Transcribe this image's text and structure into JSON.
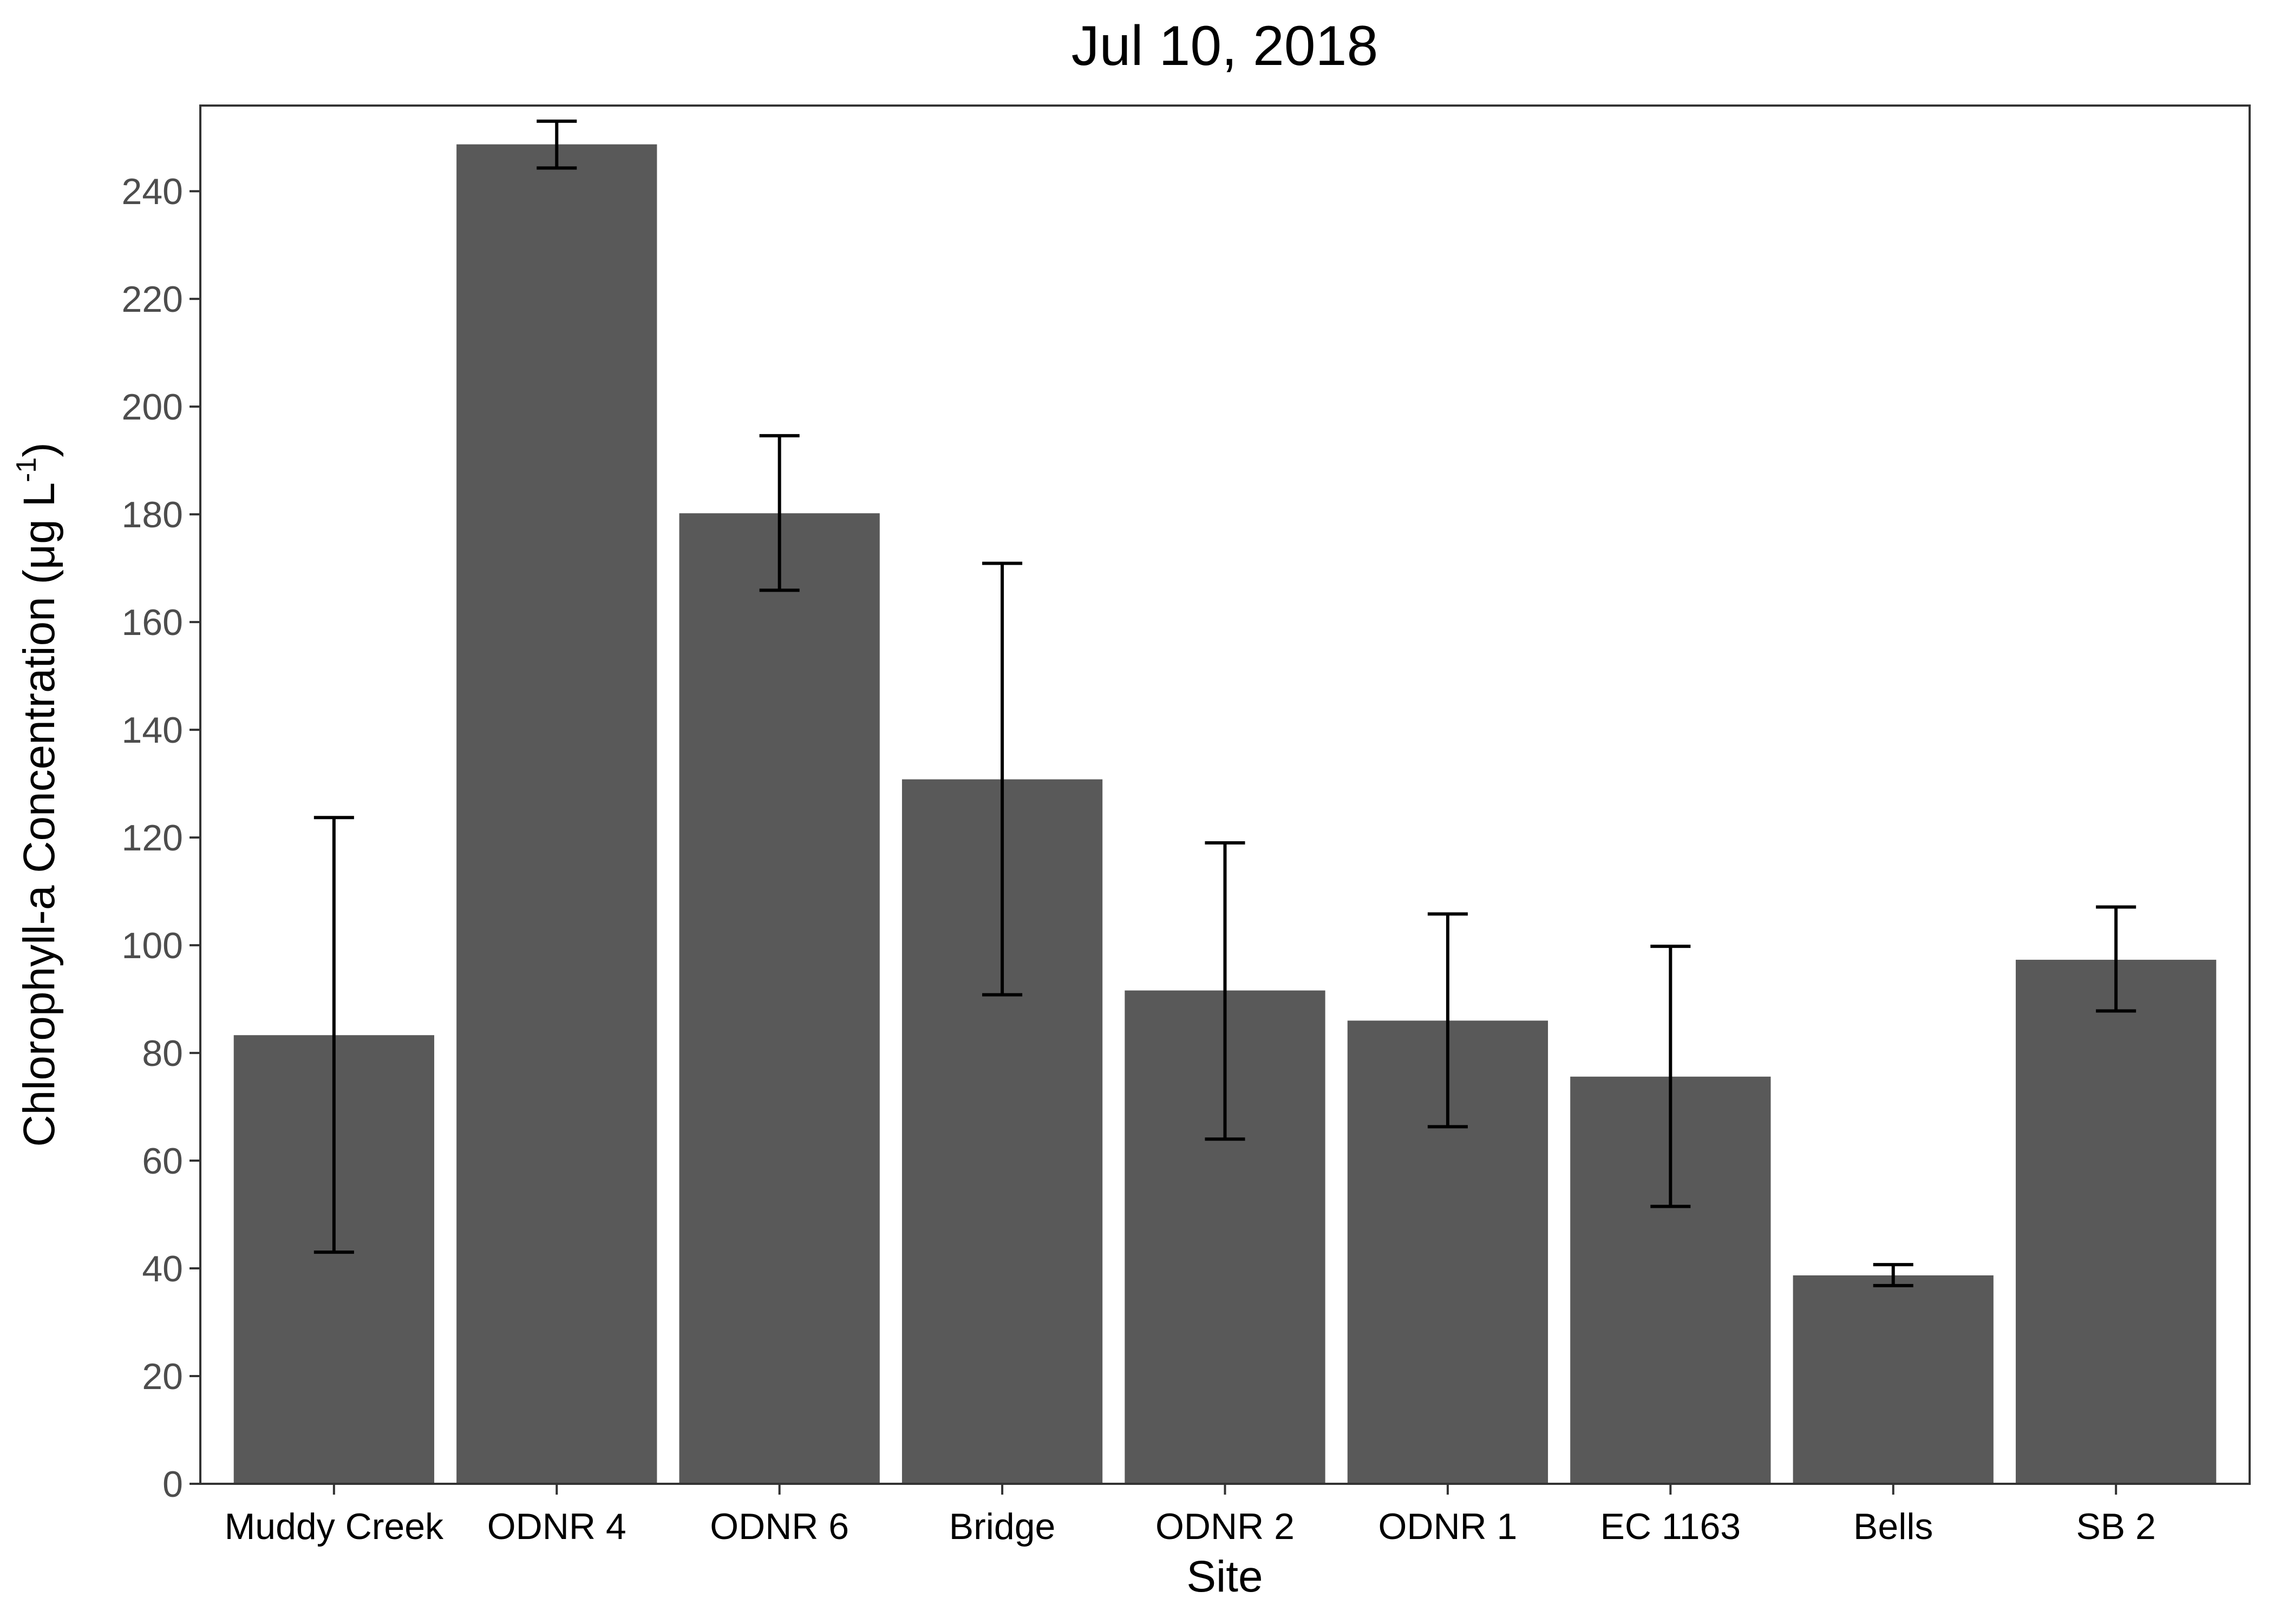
{
  "chart_data": {
    "type": "bar",
    "title": "Jul 10, 2018",
    "xlabel": "Site",
    "ylabel_text": "Chlorophyll-a Concentration (μg L",
    "ylabel_sup": "-1",
    "ylabel_close": ")",
    "categories": [
      "Muddy Creek",
      "ODNR 4",
      "ODNR 6",
      "Bridge",
      "ODNR 2",
      "ODNR 1",
      "EC 1163",
      "Bells",
      "SB 2"
    ],
    "values": [
      83.3,
      248.7,
      180.2,
      130.8,
      91.6,
      86.0,
      75.6,
      38.7,
      97.3
    ],
    "error_upper": [
      123.7,
      253.0,
      194.6,
      170.9,
      119.0,
      105.8,
      99.8,
      40.7,
      107.1
    ],
    "error_lower": [
      43.0,
      244.3,
      165.9,
      90.8,
      64.0,
      66.3,
      51.5,
      36.8,
      87.8
    ],
    "yticks": [
      0,
      20,
      40,
      60,
      80,
      100,
      120,
      140,
      160,
      180,
      200,
      220,
      240
    ],
    "ylim": [
      0,
      255.9
    ],
    "grid": false,
    "colors": {
      "bar": "#595959",
      "error_bar": "#000000",
      "panel_border": "#333333",
      "tick": "#333333"
    }
  }
}
